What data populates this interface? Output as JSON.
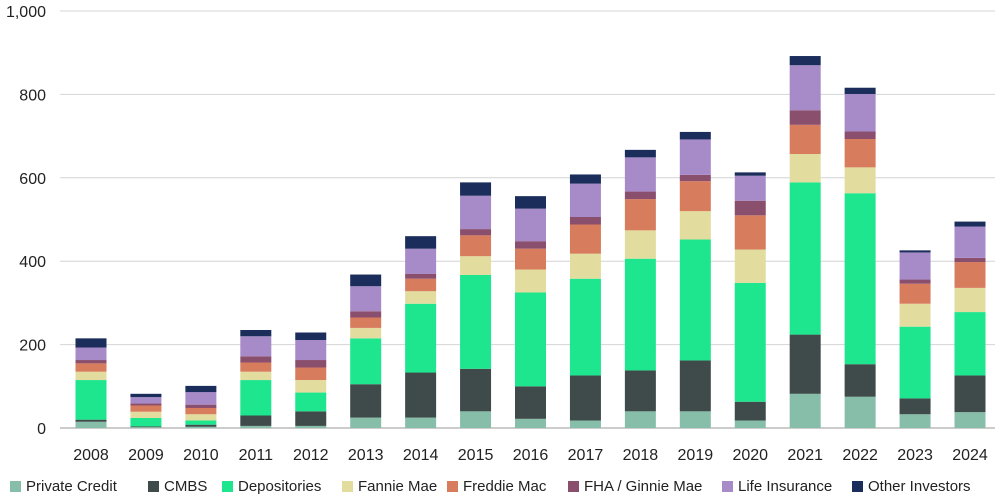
{
  "chart_data": {
    "type": "bar",
    "stacked": true,
    "categories": [
      "2008",
      "2009",
      "2010",
      "2011",
      "2012",
      "2013",
      "2014",
      "2015",
      "2016",
      "2017",
      "2018",
      "2019",
      "2020",
      "2021",
      "2022",
      "2023",
      "2024"
    ],
    "ylim": [
      0,
      1000
    ],
    "yticks": [
      0,
      200,
      400,
      600,
      800,
      1000
    ],
    "ytick_labels": [
      "0",
      "200",
      "400",
      "600",
      "800",
      "1,000"
    ],
    "grid": true,
    "legend_position": "bottom",
    "series": [
      {
        "name": "Private Credit",
        "color": "#87BEAA",
        "values": [
          15,
          2,
          3,
          5,
          5,
          25,
          25,
          40,
          22,
          18,
          40,
          40,
          18,
          82,
          75,
          33,
          38
        ]
      },
      {
        "name": "CMBS",
        "color": "#3E4B4A",
        "values": [
          5,
          2,
          5,
          25,
          35,
          80,
          108,
          102,
          78,
          108,
          98,
          122,
          45,
          142,
          78,
          38,
          88
        ]
      },
      {
        "name": "Depositories",
        "color": "#1EE68E",
        "values": [
          95,
          20,
          10,
          85,
          45,
          110,
          165,
          225,
          225,
          232,
          268,
          290,
          285,
          365,
          410,
          172,
          152
        ]
      },
      {
        "name": "Fannie Mae",
        "color": "#E2DD9E",
        "values": [
          20,
          15,
          15,
          20,
          30,
          25,
          30,
          45,
          55,
          60,
          68,
          68,
          80,
          68,
          62,
          55,
          58
        ]
      },
      {
        "name": "Freddie Mac",
        "color": "#D87C5E",
        "values": [
          20,
          15,
          15,
          22,
          30,
          25,
          30,
          50,
          50,
          70,
          75,
          72,
          82,
          70,
          68,
          48,
          62
        ]
      },
      {
        "name": "FHA / Ginnie Mae",
        "color": "#8B4F6E",
        "values": [
          8,
          5,
          8,
          15,
          18,
          15,
          12,
          15,
          18,
          18,
          18,
          15,
          35,
          35,
          18,
          10,
          10
        ]
      },
      {
        "name": "Life Insurance",
        "color": "#A78BC8",
        "values": [
          30,
          15,
          30,
          48,
          48,
          60,
          60,
          80,
          78,
          80,
          82,
          85,
          60,
          108,
          90,
          65,
          75
        ]
      },
      {
        "name": "Other Investors",
        "color": "#1B2D5A",
        "values": [
          22,
          8,
          15,
          15,
          18,
          28,
          30,
          32,
          30,
          22,
          18,
          18,
          8,
          22,
          15,
          5,
          12
        ]
      }
    ]
  }
}
